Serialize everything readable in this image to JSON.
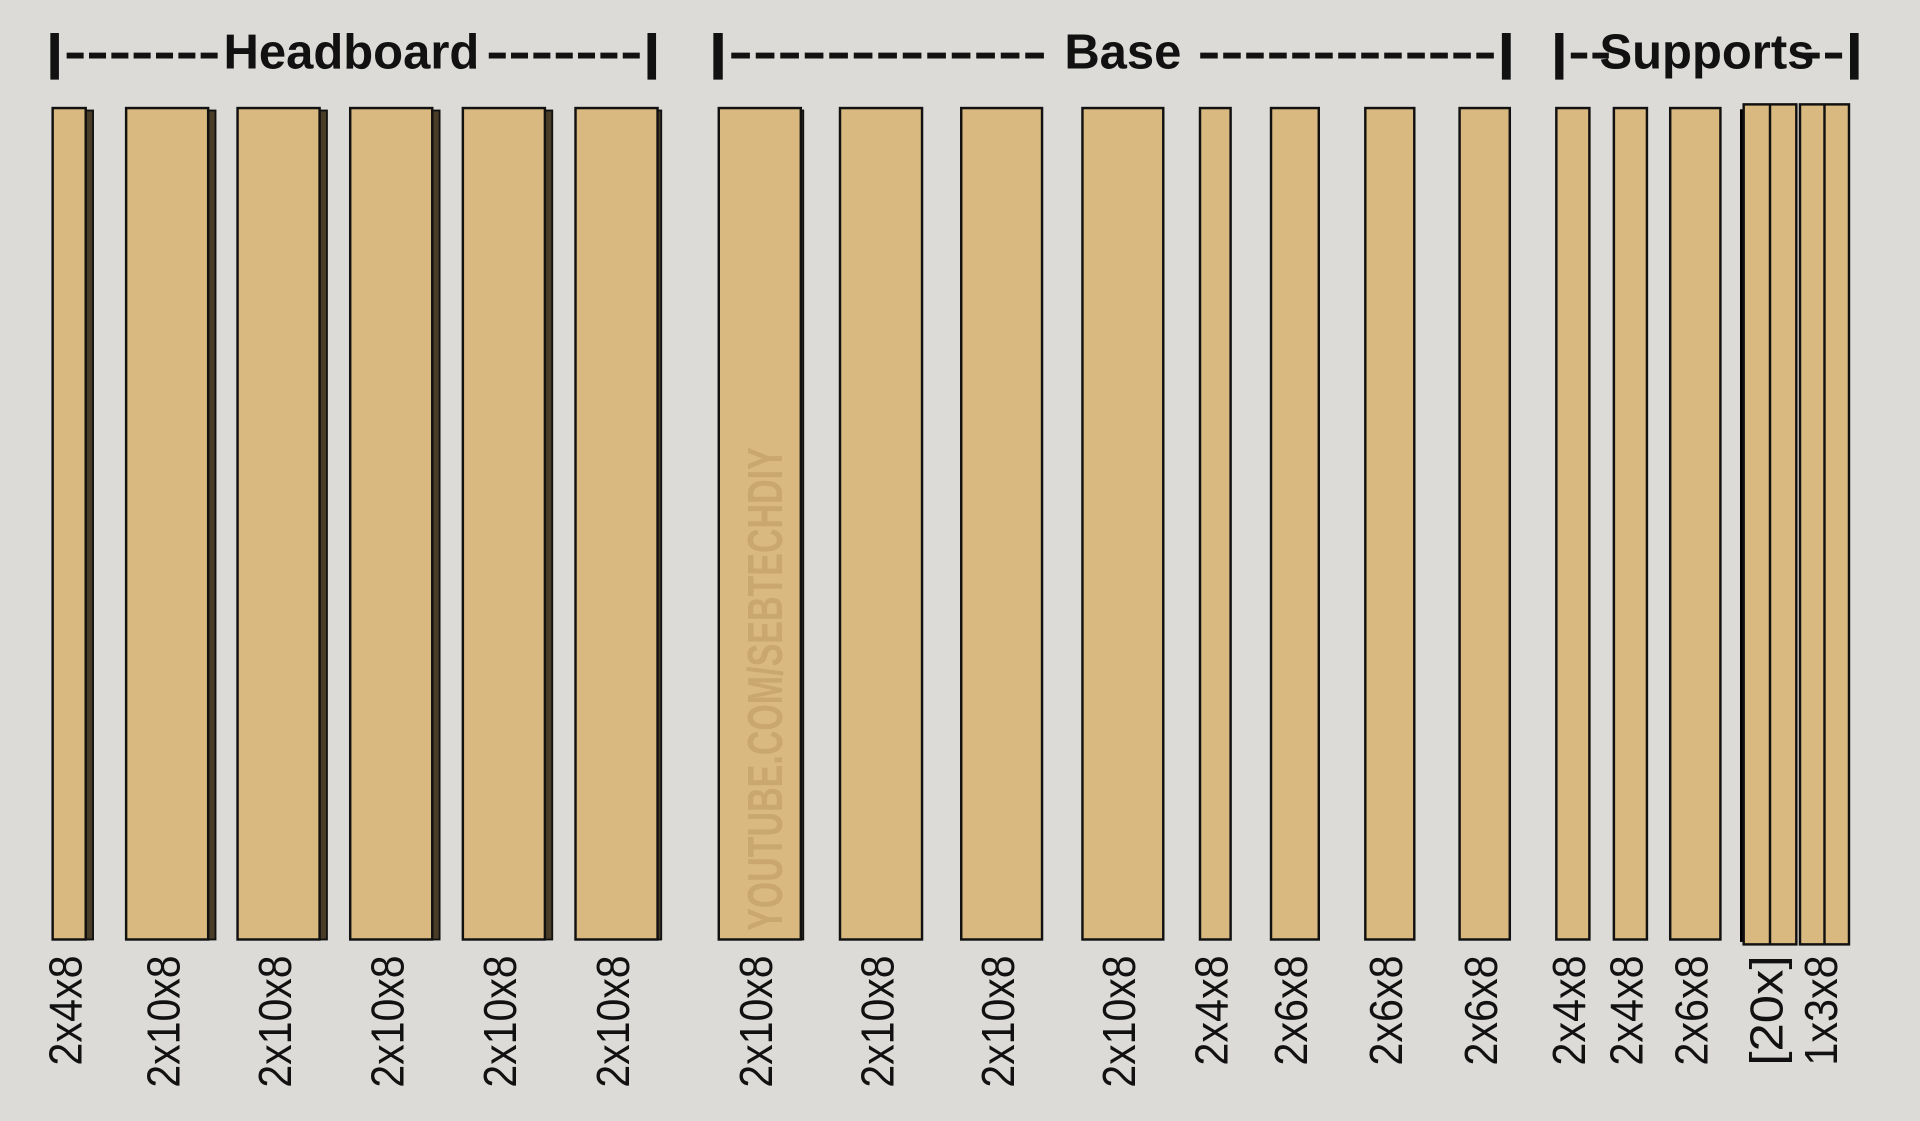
{
  "groups": [
    {
      "left": "|-------",
      "label": "Headboard",
      "right": "-------|",
      "boards": [
        "2x4x8",
        "2x10x8",
        "2x10x8",
        "2x10x8",
        "2x10x8",
        "2x10x8"
      ]
    },
    {
      "left": "|-------------",
      "label": "Base",
      "right": "-------------|",
      "boards": [
        "2x10x8",
        "2x10x8",
        "2x10x8",
        "2x10x8",
        "2x4x8",
        "2x6x8",
        "2x6x8",
        "2x6x8"
      ]
    },
    {
      "left": "|--",
      "label": "Supports",
      "right": "--|",
      "boards": [
        "2x4x8",
        "2x4x8",
        "2x6x8",
        "[20x]",
        "1x3x8"
      ]
    }
  ],
  "watermark": "YOUTUBE.COM/SEBTECHDIY"
}
